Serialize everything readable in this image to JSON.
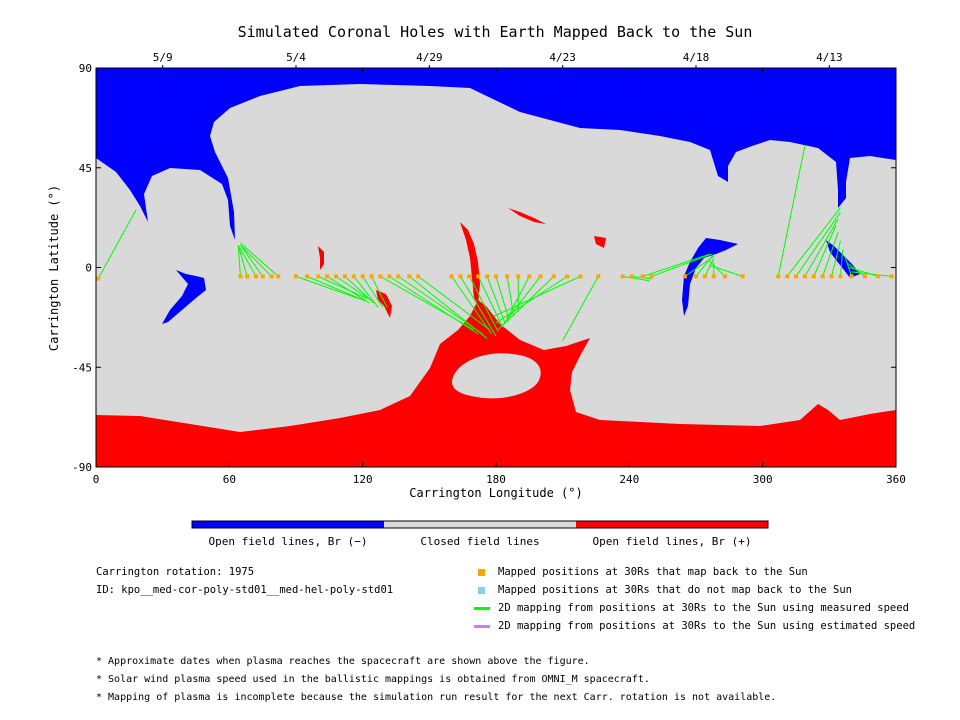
{
  "chart_data": {
    "type": "map",
    "title": "Simulated Coronal Holes with Earth Mapped Back to the Sun",
    "xlabel": "Carrington Longitude (°)",
    "ylabel": "Carrington Latitude (°)",
    "xlim": [
      0,
      360
    ],
    "ylim": [
      -90,
      90
    ],
    "x_ticks": [
      "0",
      "60",
      "120",
      "180",
      "240",
      "300",
      "360"
    ],
    "y_ticks": [
      "90",
      "45",
      "0",
      "-45",
      "-90"
    ],
    "top_dates": [
      {
        "label": "5/9",
        "lon": 30
      },
      {
        "label": "5/4",
        "lon": 90
      },
      {
        "label": "4/29",
        "lon": 150
      },
      {
        "label": "4/23",
        "lon": 210
      },
      {
        "label": "4/18",
        "lon": 270
      },
      {
        "label": "4/13",
        "lon": 330
      }
    ],
    "colorbar": [
      {
        "label": "Open field lines, Br (−)",
        "color": "#0000ff"
      },
      {
        "label": "Closed field lines",
        "color": "#d9d9d9"
      },
      {
        "label": "Open field lines, Br (+)",
        "color": "#ff0000"
      }
    ],
    "colors": {
      "negative_open": "#0000ff",
      "closed": "#d9d9d9",
      "positive_open": "#ff0000",
      "mapped_point": "#ffa500",
      "unmapped_point": "#87ceeb",
      "measured_line": "#00ff00",
      "estimated_line": "#bf7fff"
    },
    "mappings": [
      {
        "lon30": 1,
        "lat30": -5,
        "lon0": 18,
        "lat0": 26
      },
      {
        "lon30": 65,
        "lat30": -4,
        "lon0": 64,
        "lat0": 10
      },
      {
        "lon30": 68,
        "lat30": -4,
        "lon0": 64,
        "lat0": 10
      },
      {
        "lon30": 72,
        "lat30": -4,
        "lon0": 64,
        "lat0": 10
      },
      {
        "lon30": 75,
        "lat30": -4,
        "lon0": 65,
        "lat0": 10
      },
      {
        "lon30": 79,
        "lat30": -4,
        "lon0": 65,
        "lat0": 10
      },
      {
        "lon30": 82,
        "lat30": -4,
        "lon0": 65,
        "lat0": 11
      },
      {
        "lon30": 90,
        "lat30": -4,
        "lon0": 118,
        "lat0": -14
      },
      {
        "lon30": 95,
        "lat30": -4,
        "lon0": 121,
        "lat0": -15
      },
      {
        "lon30": 100,
        "lat30": -4,
        "lon0": 122,
        "lat0": -14
      },
      {
        "lon30": 104,
        "lat30": -4,
        "lon0": 123,
        "lat0": -16
      },
      {
        "lon30": 108,
        "lat30": -4,
        "lon0": 124,
        "lat0": -15
      },
      {
        "lon30": 112,
        "lat30": -4,
        "lon0": 125,
        "lat0": -16
      },
      {
        "lon30": 116,
        "lat30": -4,
        "lon0": 127,
        "lat0": -18
      },
      {
        "lon30": 120,
        "lat30": -4,
        "lon0": 129,
        "lat0": -18
      },
      {
        "lon30": 124,
        "lat30": -4,
        "lon0": 131,
        "lat0": -18
      },
      {
        "lon30": 128,
        "lat30": -4,
        "lon0": 170,
        "lat0": -28
      },
      {
        "lon30": 132,
        "lat30": -4,
        "lon0": 172,
        "lat0": -30
      },
      {
        "lon30": 136,
        "lat30": -4,
        "lon0": 174,
        "lat0": -30
      },
      {
        "lon30": 141,
        "lat30": -4,
        "lon0": 176,
        "lat0": -32
      },
      {
        "lon30": 145,
        "lat30": -4,
        "lon0": 177,
        "lat0": -28
      },
      {
        "lon30": 160,
        "lat30": -4,
        "lon0": 178,
        "lat0": -30
      },
      {
        "lon30": 164,
        "lat30": -4,
        "lon0": 180,
        "lat0": -31
      },
      {
        "lon30": 168,
        "lat30": -4,
        "lon0": 181,
        "lat0": -29
      },
      {
        "lon30": 172,
        "lat30": -4,
        "lon0": 183,
        "lat0": -27
      },
      {
        "lon30": 176,
        "lat30": -4,
        "lon0": 184,
        "lat0": -25
      },
      {
        "lon30": 180,
        "lat30": -4,
        "lon0": 186,
        "lat0": -24
      },
      {
        "lon30": 185,
        "lat30": -4,
        "lon0": 188,
        "lat0": -22
      },
      {
        "lon30": 190,
        "lat30": -4,
        "lon0": 190,
        "lat0": -20
      },
      {
        "lon30": 195,
        "lat30": -4,
        "lon0": 185,
        "lat0": -23
      },
      {
        "lon30": 200,
        "lat30": -4,
        "lon0": 183,
        "lat0": -26
      },
      {
        "lon30": 206,
        "lat30": -4,
        "lon0": 181,
        "lat0": -28
      },
      {
        "lon30": 212,
        "lat30": -4,
        "lon0": 180,
        "lat0": -25
      },
      {
        "lon30": 218,
        "lat30": -4,
        "lon0": 179,
        "lat0": -22
      },
      {
        "lon30": 226,
        "lat30": -4,
        "lon0": 210,
        "lat0": -33
      },
      {
        "lon30": 237,
        "lat30": -4,
        "lon0": 249,
        "lat0": -6
      },
      {
        "lon30": 241,
        "lat30": -4,
        "lon0": 250,
        "lat0": -5
      },
      {
        "lon30": 246,
        "lat30": -4,
        "lon0": 276,
        "lat0": 6
      },
      {
        "lon30": 250,
        "lat30": -4,
        "lon0": 277,
        "lat0": 6
      },
      {
        "lon30": 265,
        "lat30": -4,
        "lon0": 278,
        "lat0": 5
      },
      {
        "lon30": 270,
        "lat30": -4,
        "lon0": 278,
        "lat0": 6
      },
      {
        "lon30": 274,
        "lat30": -4,
        "lon0": 278,
        "lat0": 4
      },
      {
        "lon30": 278,
        "lat30": -4,
        "lon0": 278,
        "lat0": 2
      },
      {
        "lon30": 283,
        "lat30": -4,
        "lon0": 276,
        "lat0": 3
      },
      {
        "lon30": 291,
        "lat30": -4,
        "lon0": 276,
        "lat0": 1
      },
      {
        "lon30": 307,
        "lat30": -4,
        "lon0": 319,
        "lat0": 55
      },
      {
        "lon30": 311,
        "lat30": -4,
        "lon0": 335,
        "lat0": 27
      },
      {
        "lon30": 315,
        "lat30": -4,
        "lon0": 335,
        "lat0": 25
      },
      {
        "lon30": 319,
        "lat30": -4,
        "lon0": 334,
        "lat0": 22
      },
      {
        "lon30": 323,
        "lat30": -4,
        "lon0": 333,
        "lat0": 19
      },
      {
        "lon30": 327,
        "lat30": -4,
        "lon0": 334,
        "lat0": 16
      },
      {
        "lon30": 331,
        "lat30": -4,
        "lon0": 335,
        "lat0": 12
      },
      {
        "lon30": 335,
        "lat30": -4,
        "lon0": 336,
        "lat0": 8
      },
      {
        "lon30": 340,
        "lat30": -4,
        "lon0": 337,
        "lat0": 5
      },
      {
        "lon30": 346,
        "lat30": -4,
        "lon0": 338,
        "lat0": 2
      },
      {
        "lon30": 352,
        "lat30": -4,
        "lon0": 339,
        "lat0": 0
      },
      {
        "lon30": 358,
        "lat30": -4,
        "lon0": 340,
        "lat0": -2
      }
    ]
  },
  "info": {
    "rotation": "Carrington rotation: 1975",
    "id": "ID: kpo__med-cor-poly-std01__med-hel-poly-std01"
  },
  "legend": [
    {
      "label": "Mapped positions at 30Rs that map back to the Sun",
      "kind": "square",
      "color": "#ffa500"
    },
    {
      "label": "Mapped positions at 30Rs that do not map back to the Sun",
      "kind": "square",
      "color": "#87ceeb"
    },
    {
      "label": "2D mapping from positions at 30Rs to the Sun using measured speed",
      "kind": "line",
      "color": "#00ff00"
    },
    {
      "label": "2D mapping from positions at 30Rs to the Sun using estimated speed",
      "kind": "line",
      "color": "#bf7fff"
    }
  ],
  "notes": [
    "* Approximate dates when plasma reaches the spacecraft are shown above the figure.",
    "* Solar wind plasma speed used in the ballistic mappings is obtained from OMNI_M spacecraft.",
    "* Mapping of plasma is incomplete because the simulation run result for the next Carr. rotation is not available."
  ]
}
